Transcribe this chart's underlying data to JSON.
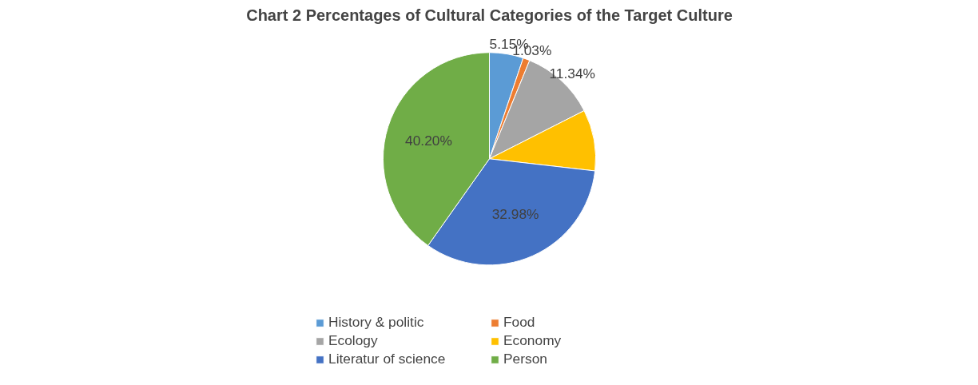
{
  "chart_data": {
    "type": "pie",
    "title": "Chart 2 Percentages of Cultural Categories of the Target Culture",
    "categories": [
      "History & politic",
      "Food",
      "Ecology",
      "Economy",
      "Literatur of science",
      "Person"
    ],
    "values": [
      5.15,
      1.03,
      11.34,
      9.3,
      32.98,
      40.2
    ],
    "colors": [
      "#5b9bd5",
      "#ed7d31",
      "#a5a5a5",
      "#ffc000",
      "#4472c4",
      "#70ad47"
    ],
    "value_labels": [
      "5.15%",
      "1.03%",
      "11.34%",
      null,
      "32.98%",
      "40.20%"
    ],
    "legend": "bottom"
  }
}
